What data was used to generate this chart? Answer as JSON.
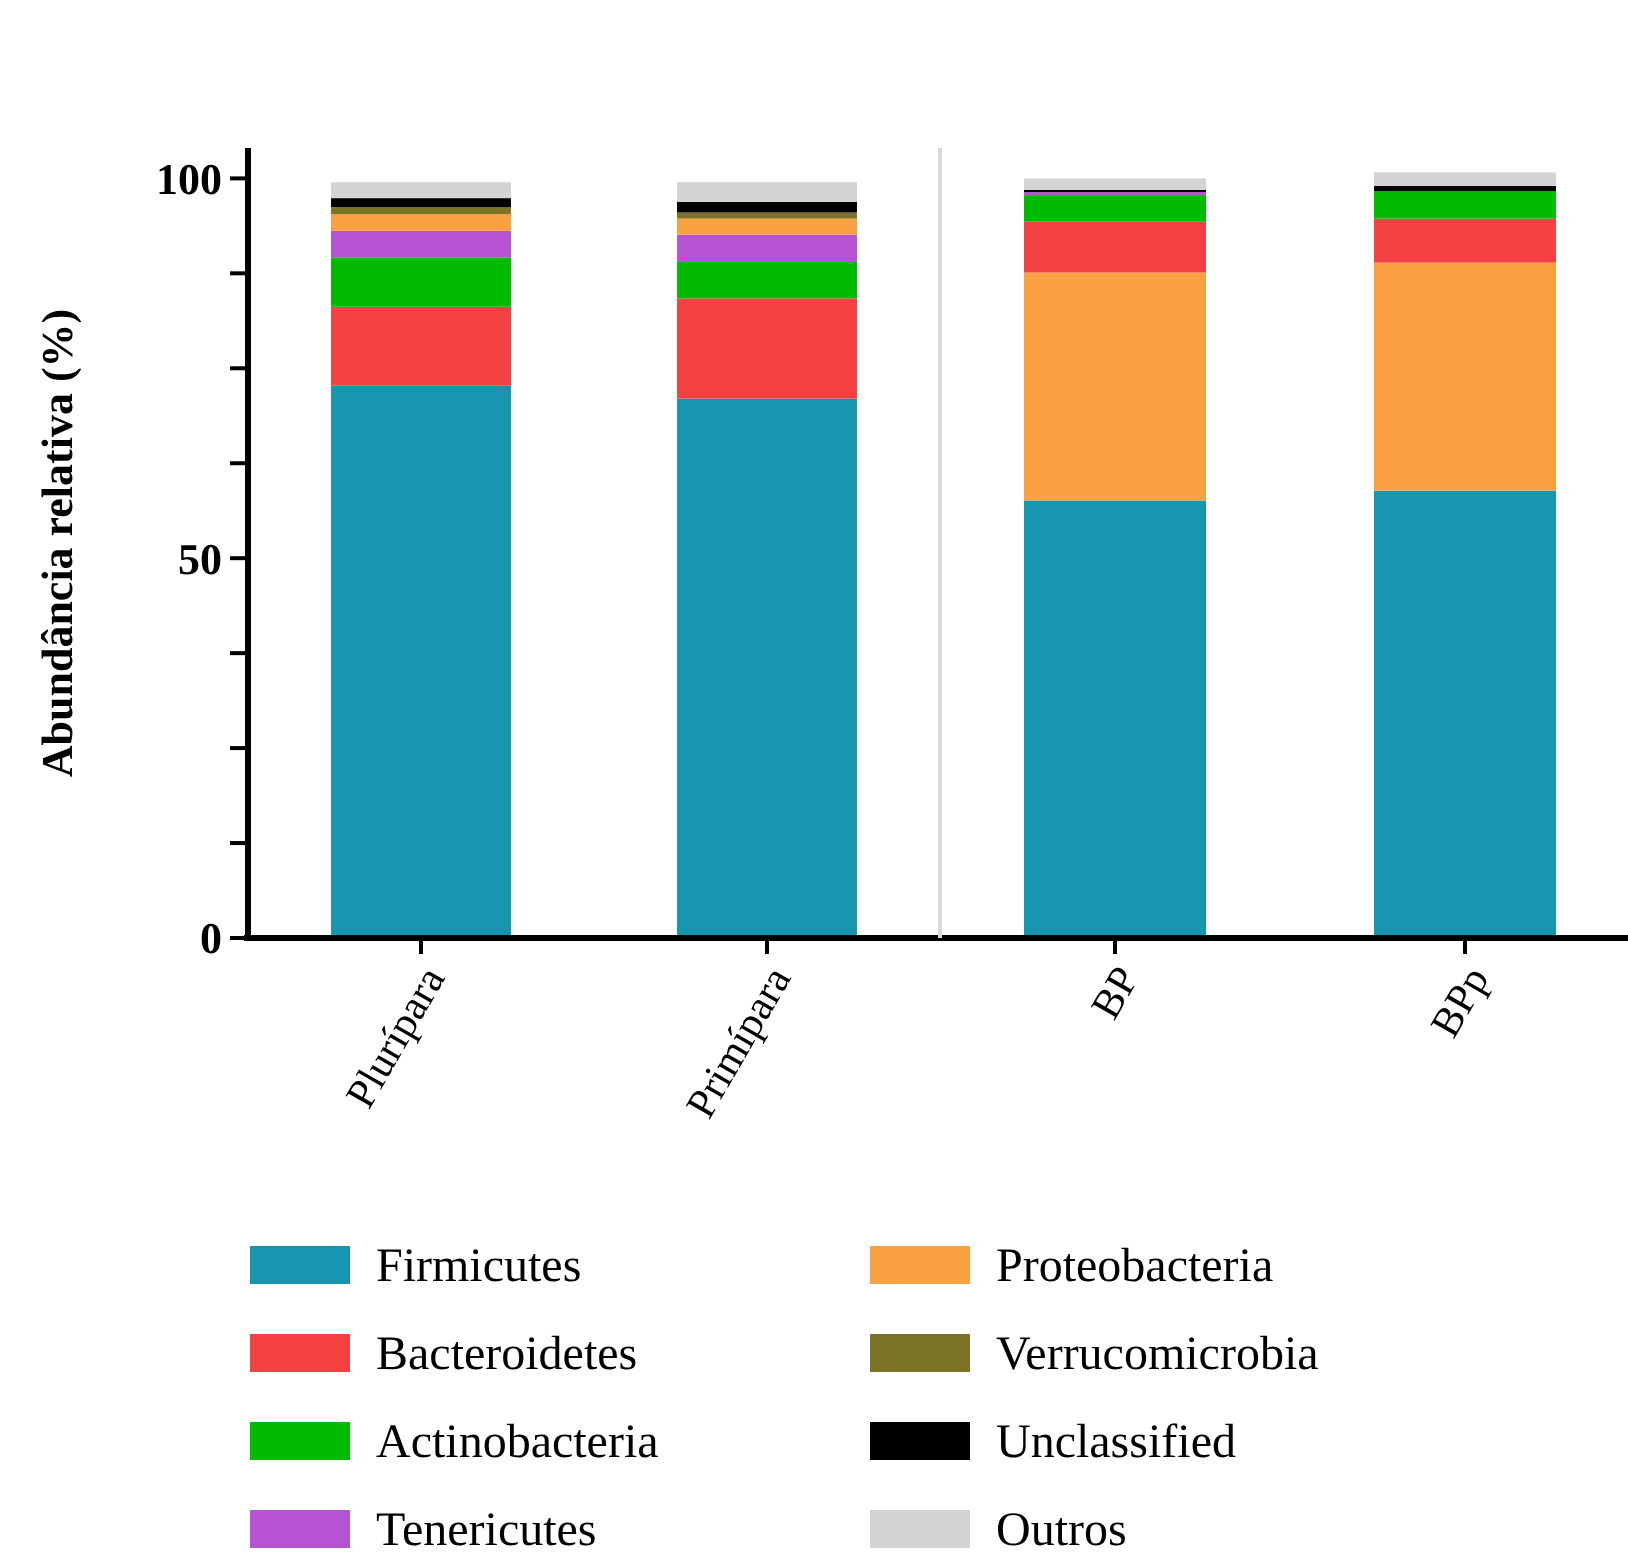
{
  "chart_data": [
    {
      "type": "bar",
      "stacked": true,
      "ylabel": "Abundância relativa (%)",
      "categories": [
        "Plurípara",
        "Primípara"
      ],
      "ylim": [
        0,
        104
      ],
      "yticks": [
        0,
        {
          "value": 12.5,
          "label": null
        },
        {
          "value": 25,
          "label": null
        },
        {
          "value": 37.5,
          "label": null
        },
        50,
        {
          "value": 62.5,
          "label": null
        },
        {
          "value": 75,
          "label": null
        },
        {
          "value": 87.5,
          "label": null
        },
        100
      ],
      "legend": "bottom",
      "series": [
        {
          "name": "Firmicutes",
          "color": "#1796b0",
          "values": [
            72.7,
            71.0
          ]
        },
        {
          "name": "Bacteroidetes",
          "color": "#f44242",
          "values": [
            10.4,
            13.2
          ]
        },
        {
          "name": "Actinobacteria",
          "color": "#00bb00",
          "values": [
            6.5,
            4.8
          ]
        },
        {
          "name": "Tenericutes",
          "color": "#b553d3",
          "values": [
            3.5,
            3.6
          ]
        },
        {
          "name": "Proteobacteria",
          "color": "#f9a040",
          "values": [
            2.2,
            2.1
          ]
        },
        {
          "name": "Verrucomicrobia",
          "color": "#7d7327",
          "values": [
            0.9,
            0.8
          ]
        },
        {
          "name": "Unclassified",
          "color": "#000000",
          "values": [
            1.2,
            1.4
          ]
        },
        {
          "name": "Outros",
          "color": "#d3d3d3",
          "values": [
            2.1,
            2.6
          ]
        }
      ]
    },
    {
      "type": "bar",
      "stacked": true,
      "categories": [
        "BP",
        "BPp"
      ],
      "ylim": [
        0,
        104
      ],
      "tick_labels": "x",
      "series": [
        {
          "name": "Firmicutes",
          "color": "#1796b0",
          "values": [
            57.6,
            58.9
          ]
        },
        {
          "name": "Proteobacteria",
          "color": "#f9a040",
          "values": [
            30.0,
            30.0
          ]
        },
        {
          "name": "Bacteroidetes",
          "color": "#f44242",
          "values": [
            6.7,
            5.8
          ]
        },
        {
          "name": "Actinobacteria",
          "color": "#00bb00",
          "values": [
            3.5,
            3.6
          ]
        },
        {
          "name": "Tenericutes",
          "color": "#b553d3",
          "values": [
            0.4,
            null
          ]
        },
        {
          "name": "Unclassified",
          "color": "#000000",
          "values": [
            0.3,
            0.7
          ]
        },
        {
          "name": "Outros",
          "color": "#d3d3d3",
          "values": [
            1.5,
            1.8
          ]
        }
      ]
    }
  ]
}
